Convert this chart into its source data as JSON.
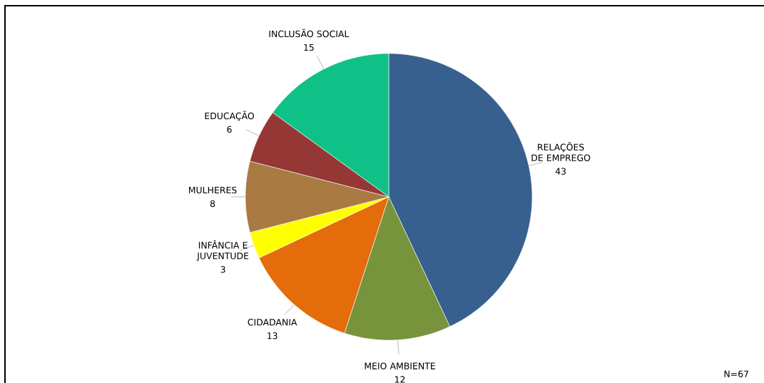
{
  "chart_data": {
    "type": "pie",
    "categories": [
      "RELAÇÕES DE EMPREGO",
      "MEIO AMBIENTE",
      "CIDADANIA",
      "INFÂNCIA E JUVENTUDE",
      "MULHERES",
      "EDUCAÇÃO",
      "INCLUSÃO SOCIAL"
    ],
    "values": [
      43,
      12,
      13,
      3,
      8,
      6,
      15
    ],
    "colors": [
      "#37608f",
      "#77933c",
      "#e46c0a",
      "#ffff00",
      "#a97a41",
      "#953735",
      "#10c187"
    ],
    "data_labels": true,
    "annotations": [
      "N=67"
    ]
  }
}
